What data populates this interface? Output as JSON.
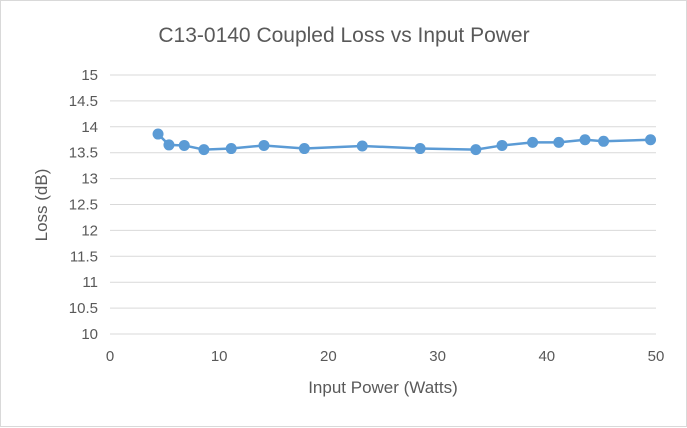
{
  "chart_data": {
    "type": "line",
    "title": "C13-0140 Coupled Loss vs Input Power",
    "xlabel": "Input Power (Watts)",
    "ylabel": "Loss (dB)",
    "xlim": [
      0,
      50
    ],
    "ylim": [
      10,
      15
    ],
    "xticks": [
      0,
      10,
      20,
      30,
      40,
      50
    ],
    "yticks": [
      "10",
      "10.5",
      "11",
      "11.5",
      "12",
      "12.5",
      "13",
      "13.5",
      "14",
      "14.5",
      "15"
    ],
    "grid": true,
    "legend": "none",
    "series": [
      {
        "color": "#5b9bd5",
        "x": [
          4.4,
          5.4,
          6.8,
          8.6,
          11.1,
          14.1,
          17.8,
          23.1,
          28.4,
          33.5,
          35.9,
          38.7,
          41.1,
          43.5,
          45.2,
          49.5
        ],
        "y": [
          13.86,
          13.65,
          13.64,
          13.56,
          13.58,
          13.64,
          13.58,
          13.63,
          13.58,
          13.56,
          13.64,
          13.7,
          13.7,
          13.75,
          13.72,
          13.75
        ]
      }
    ]
  },
  "colors": {
    "grid": "#d9d9d9",
    "text": "#595959",
    "series": "#5b9bd5"
  }
}
